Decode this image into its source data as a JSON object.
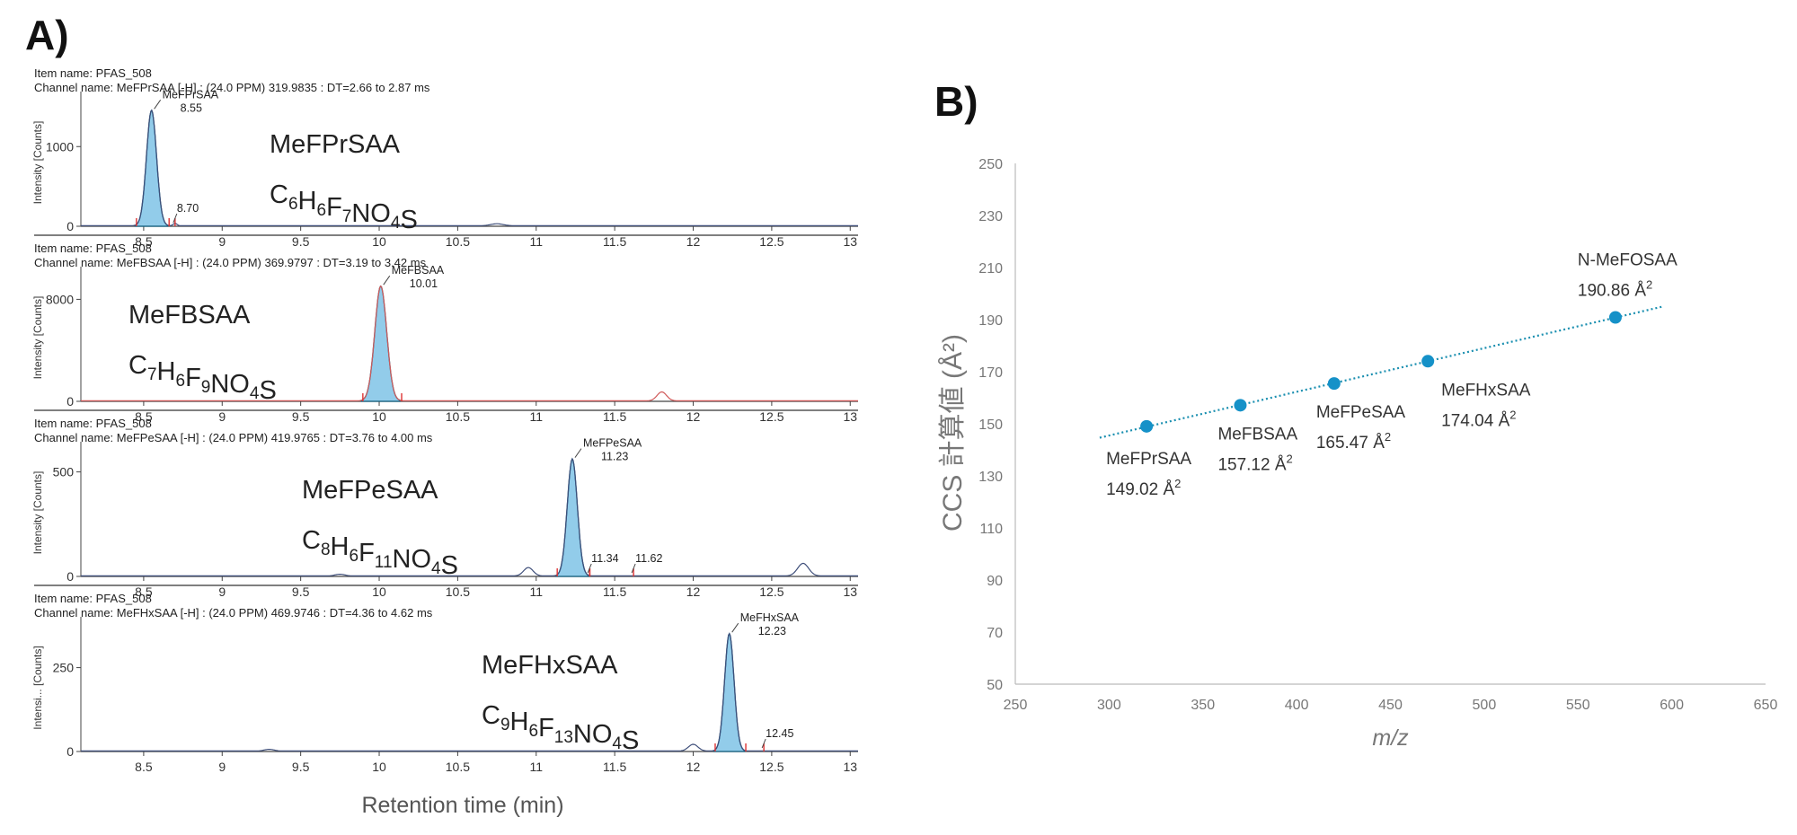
{
  "panel_a": {
    "letter": "A)",
    "x_axis_title": "Retention time (min)",
    "x_ticks": [
      "8.5",
      "9",
      "9.5",
      "10",
      "10.5",
      "11",
      "11.5",
      "12",
      "12.5",
      "13"
    ],
    "traces": [
      {
        "item_name": "Item name: PFAS_508",
        "channel_name": "Channel name: MeFPrSAA [-H] : (24.0 PPM) 319.9835 : DT=2.66 to 2.87 ms",
        "y_axis_title": "Intensity [Counts]",
        "y_ticks": [
          "0",
          "1000"
        ],
        "compound": "MeFPrSAA",
        "formula": [
          [
            "C",
            ""
          ],
          [
            "6",
            "sub"
          ],
          [
            "H",
            ""
          ],
          [
            "6",
            "sub"
          ],
          [
            "F",
            ""
          ],
          [
            "7",
            "sub"
          ],
          [
            "NO",
            ""
          ],
          [
            "4",
            "sub"
          ],
          [
            "S",
            ""
          ]
        ],
        "peak_label": "MeFPrSAA",
        "peak_rt": "8.55",
        "minor_peaks": [
          "8.70"
        ]
      },
      {
        "item_name": "Item name: PFAS_508",
        "channel_name": "Channel name: MeFBSAA [-H] : (24.0 PPM) 369.9797 : DT=3.19 to 3.42 ms",
        "y_axis_title": "Intensity [Counts]",
        "y_ticks": [
          "0",
          "8000"
        ],
        "compound": "MeFBSAA",
        "formula": [
          [
            "C",
            ""
          ],
          [
            "7",
            "sub"
          ],
          [
            "H",
            ""
          ],
          [
            "6",
            "sub"
          ],
          [
            "F",
            ""
          ],
          [
            "9",
            "sub"
          ],
          [
            "NO",
            ""
          ],
          [
            "4",
            "sub"
          ],
          [
            "S",
            ""
          ]
        ],
        "peak_label": "MeFBSAA",
        "peak_rt": "10.01",
        "minor_peaks": []
      },
      {
        "item_name": "Item name: PFAS_508",
        "channel_name": "Channel name: MeFPeSAA [-H] : (24.0 PPM) 419.9765 : DT=3.76 to 4.00 ms",
        "y_axis_title": "Intensity [Counts]",
        "y_ticks": [
          "0",
          "500"
        ],
        "compound": "MeFPeSAA",
        "formula": [
          [
            "C",
            ""
          ],
          [
            "8",
            "sub"
          ],
          [
            "H",
            ""
          ],
          [
            "6",
            "sub"
          ],
          [
            "F",
            ""
          ],
          [
            "11",
            "sub"
          ],
          [
            "NO",
            ""
          ],
          [
            "4",
            "sub"
          ],
          [
            "S",
            ""
          ]
        ],
        "peak_label": "MeFPeSAA",
        "peak_rt": "11.23",
        "minor_peaks": [
          "11.34",
          "11.62"
        ]
      },
      {
        "item_name": "Item name: PFAS_508",
        "channel_name": "Channel name: MeFHxSAA [-H] : (24.0 PPM) 469.9746 : DT=4.36 to 4.62 ms",
        "y_axis_title": "Intensi... [Counts]",
        "y_ticks": [
          "0",
          "250"
        ],
        "compound": "MeFHxSAA",
        "formula": [
          [
            "C",
            ""
          ],
          [
            "9",
            "sub"
          ],
          [
            "H",
            ""
          ],
          [
            "6",
            "sub"
          ],
          [
            "F",
            ""
          ],
          [
            "13",
            "sub"
          ],
          [
            "NO",
            ""
          ],
          [
            "4",
            "sub"
          ],
          [
            "S",
            ""
          ]
        ],
        "peak_label": "MeFHxSAA",
        "peak_rt": "12.23",
        "minor_peaks": [
          "12.45"
        ]
      }
    ]
  },
  "panel_b": {
    "letter": "B)",
    "ylabel": "CCS 計算値 (Å²)",
    "xlabel": "m/z",
    "colors": {
      "point": "#1591c8",
      "trend": "#1a8fb0",
      "axis": "#bbbbbb"
    }
  },
  "chart_data": [
    {
      "type": "line",
      "title": "",
      "xlabel": "Retention time (min)",
      "xlim": [
        8.1,
        13.05
      ],
      "series": [
        {
          "name": "MeFPrSAA",
          "peaks": [
            {
              "x": 8.55,
              "y": 1450
            },
            {
              "x": 8.7,
              "y": 40
            }
          ]
        },
        {
          "name": "MeFBSAA",
          "peaks": [
            {
              "x": 10.01,
              "y": 9000
            }
          ]
        },
        {
          "name": "MeFPeSAA",
          "peaks": [
            {
              "x": 11.23,
              "y": 560
            },
            {
              "x": 11.34,
              "y": 10
            },
            {
              "x": 11.62,
              "y": 10
            }
          ]
        },
        {
          "name": "MeFHxSAA",
          "peaks": [
            {
              "x": 12.23,
              "y": 350
            },
            {
              "x": 12.45,
              "y": 5
            }
          ]
        }
      ]
    },
    {
      "type": "scatter",
      "title": "",
      "xlabel": "m/z",
      "ylabel": "CCS 計算値 (Å²)",
      "xlim": [
        250,
        650
      ],
      "ylim": [
        50,
        250
      ],
      "x_ticks": [
        250,
        300,
        350,
        400,
        450,
        500,
        550,
        600,
        650
      ],
      "y_ticks": [
        50,
        70,
        90,
        110,
        130,
        150,
        170,
        190,
        210,
        230,
        250
      ],
      "grid": false,
      "trendline": {
        "style": "dotted",
        "x_range": [
          295,
          595
        ]
      },
      "points": [
        {
          "x": 319.98,
          "y": 149.02,
          "name": "MeFPrSAA",
          "label": "149.02 Å²"
        },
        {
          "x": 369.98,
          "y": 157.12,
          "name": "MeFBSAA",
          "label": "157.12 Å²"
        },
        {
          "x": 419.98,
          "y": 165.47,
          "name": "MeFPeSAA",
          "label": "165.47 Å²"
        },
        {
          "x": 469.97,
          "y": 174.04,
          "name": "MeFHxSAA",
          "label": "174.04 Å²"
        },
        {
          "x": 569.97,
          "y": 190.86,
          "name": "N-MeFOSAA",
          "label": "190.86 Å²"
        }
      ]
    }
  ]
}
